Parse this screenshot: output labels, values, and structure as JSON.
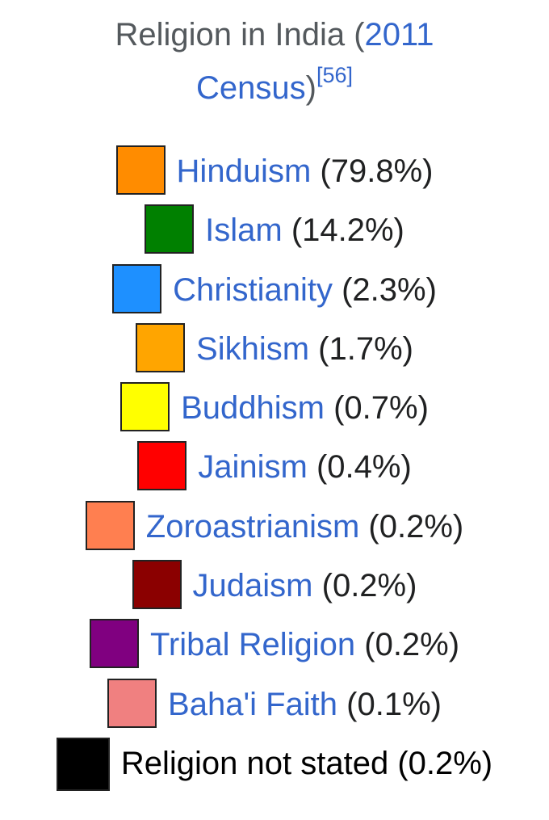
{
  "chart_data": {
    "type": "legend",
    "title": {
      "prefix": "Religion in India (",
      "link_year": "2011",
      "link_census": "Census",
      "suffix": ")",
      "reference": "[56]"
    },
    "entries": [
      {
        "label": "Hinduism",
        "value_text": "(79.8%)",
        "value": 79.8,
        "color": "#ff8c00",
        "linked": true
      },
      {
        "label": "Islam",
        "value_text": "(14.2%)",
        "value": 14.2,
        "color": "#008000",
        "linked": true
      },
      {
        "label": "Christianity",
        "value_text": "(2.3%)",
        "value": 2.3,
        "color": "#1e90ff",
        "linked": true
      },
      {
        "label": "Sikhism",
        "value_text": "(1.7%)",
        "value": 1.7,
        "color": "#ffa500",
        "linked": true
      },
      {
        "label": "Buddhism",
        "value_text": "(0.7%)",
        "value": 0.7,
        "color": "#ffff00",
        "linked": true
      },
      {
        "label": "Jainism",
        "value_text": "(0.4%)",
        "value": 0.4,
        "color": "#ff0000",
        "linked": true
      },
      {
        "label": "Zoroastrianism",
        "value_text": "(0.2%)",
        "value": 0.2,
        "color": "#ff7f50",
        "linked": true
      },
      {
        "label": "Judaism",
        "value_text": "(0.2%)",
        "value": 0.2,
        "color": "#8b0000",
        "linked": true
      },
      {
        "label": "Tribal Religion",
        "value_text": "(0.2%)",
        "value": 0.2,
        "color": "#800080",
        "linked": true
      },
      {
        "label": "Baha'i Faith",
        "value_text": "(0.1%)",
        "value": 0.1,
        "color": "#f08080",
        "linked": true
      },
      {
        "label": "Religion not stated",
        "value_text": "(0.2%)",
        "value": 0.2,
        "color": "#000000",
        "linked": false
      }
    ]
  }
}
